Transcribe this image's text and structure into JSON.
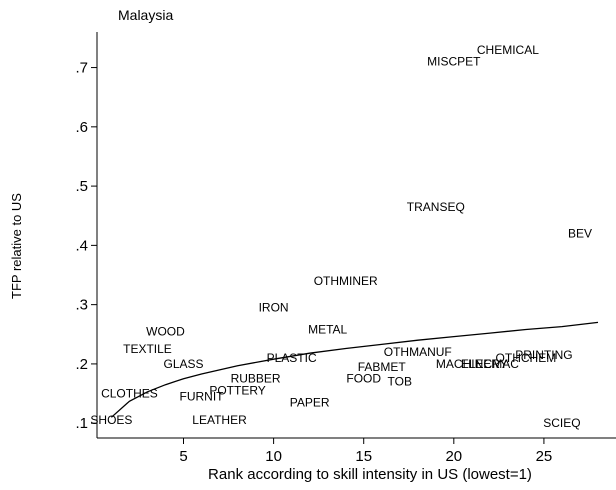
{
  "chart_data": {
    "type": "scatter",
    "title": "Malaysia",
    "xlabel": "Rank according to skill intensity in US (lowest=1)",
    "ylabel": "TFP relative to US",
    "xlim": [
      0.2,
      29
    ],
    "ylim": [
      0.075,
      0.76
    ],
    "xticks": [
      5,
      10,
      15,
      20,
      25
    ],
    "xtick_labels": [
      "5",
      "10",
      "15",
      "20",
      "25"
    ],
    "yticks": [
      0.1,
      0.2,
      0.3,
      0.4,
      0.5,
      0.6,
      0.7
    ],
    "ytick_labels": [
      ".1",
      ".2",
      ".3",
      ".4",
      ".5",
      ".6",
      ".7"
    ],
    "grid": false,
    "points": [
      {
        "label": "SHOES",
        "x": 1,
        "y": 0.105
      },
      {
        "label": "CLOTHES",
        "x": 2,
        "y": 0.15
      },
      {
        "label": "TEXTILE",
        "x": 3,
        "y": 0.225
      },
      {
        "label": "WOOD",
        "x": 4,
        "y": 0.255
      },
      {
        "label": "GLASS",
        "x": 5,
        "y": 0.2
      },
      {
        "label": "FURNIT",
        "x": 6,
        "y": 0.145
      },
      {
        "label": "LEATHER",
        "x": 7,
        "y": 0.105
      },
      {
        "label": "POTTERY",
        "x": 8,
        "y": 0.155
      },
      {
        "label": "RUBBER",
        "x": 9,
        "y": 0.175
      },
      {
        "label": "IRON",
        "x": 10,
        "y": 0.295
      },
      {
        "label": "PLASTIC",
        "x": 11,
        "y": 0.21
      },
      {
        "label": "PAPER",
        "x": 12,
        "y": 0.135
      },
      {
        "label": "METAL",
        "x": 13,
        "y": 0.258
      },
      {
        "label": "OTHMINER",
        "x": 14,
        "y": 0.34
      },
      {
        "label": "FOOD",
        "x": 15,
        "y": 0.175
      },
      {
        "label": "FABMET",
        "x": 16,
        "y": 0.195
      },
      {
        "label": "TOB",
        "x": 17,
        "y": 0.17
      },
      {
        "label": "OTHMANUF",
        "x": 18,
        "y": 0.22
      },
      {
        "label": "TRANSEQ",
        "x": 19,
        "y": 0.465
      },
      {
        "label": "MISCPET",
        "x": 20,
        "y": 0.71
      },
      {
        "label": "MACHINERY",
        "x": 21,
        "y": 0.2
      },
      {
        "label": "ELECMAC",
        "x": 22,
        "y": 0.2
      },
      {
        "label": "CHEMICAL",
        "x": 23,
        "y": 0.73
      },
      {
        "label": "OTHCHEM",
        "x": 24,
        "y": 0.21
      },
      {
        "label": "PRINTING",
        "x": 25,
        "y": 0.215
      },
      {
        "label": "SCIEQ",
        "x": 26,
        "y": 0.1
      },
      {
        "label": "BEV",
        "x": 27,
        "y": 0.42
      }
    ],
    "fit_line": {
      "x": [
        1,
        2,
        3,
        4,
        5,
        6,
        8,
        10,
        12,
        14,
        16,
        18,
        20,
        22,
        24,
        26,
        28
      ],
      "y": [
        0.11,
        0.137,
        0.153,
        0.165,
        0.175,
        0.183,
        0.197,
        0.208,
        0.218,
        0.226,
        0.233,
        0.24,
        0.246,
        0.252,
        0.258,
        0.263,
        0.27
      ]
    }
  }
}
